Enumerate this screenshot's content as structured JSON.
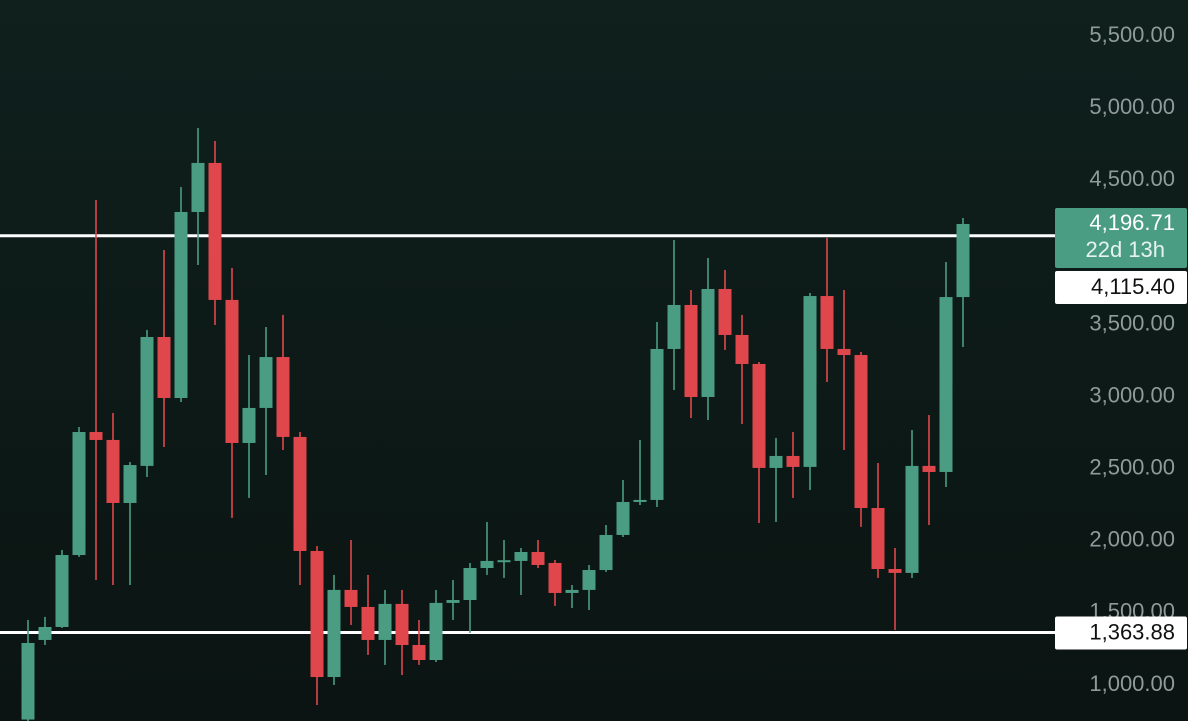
{
  "chart_data": {
    "type": "candlestick",
    "open": [
      760,
      1312,
      1402,
      1901,
      2754,
      2699,
      2262,
      2519,
      3413,
      2990,
      4280,
      4620,
      3670,
      2678,
      2921,
      3274,
      2720,
      1929,
      1055,
      1659,
      1541,
      1312,
      1562,
      1277,
      1173,
      1569,
      1589,
      1811,
      1860,
      1860,
      1922,
      1846,
      1638,
      1659,
      1797,
      2040,
      2269,
      2283,
      3330,
      3635,
      2997,
      3746,
      3427,
      3226,
      2505,
      2588,
      2512,
      3697,
      3330,
      3288,
      2227,
      1804,
      1777,
      2519,
      2477,
      3690
    ],
    "high": [
      1451,
      1472,
      1936,
      2789,
      4363,
      2886,
      2546,
      3462,
      4016,
      4453,
      4862,
      4772,
      3892,
      3288,
      3482,
      3566,
      2754,
      1964,
      1763,
      2005,
      1763,
      1659,
      1659,
      1451,
      1659,
      1728,
      1846,
      2130,
      2005,
      1950,
      2005,
      1867,
      1693,
      1832,
      2109,
      2421,
      2699,
      3517,
      4086,
      3739,
      3961,
      3878,
      3566,
      3240,
      2713,
      2754,
      3718,
      4100,
      3739,
      3309,
      2539,
      1950,
      2768,
      2872,
      3933,
      4238
    ],
    "low": [
      750,
      1277,
      1395,
      1888,
      1728,
      1693,
      1693,
      2442,
      2650,
      2962,
      3912,
      3496,
      2158,
      2297,
      2456,
      2629,
      1693,
      861,
      1000,
      1416,
      1208,
      1139,
      1069,
      1139,
      1159,
      1451,
      1361,
      1763,
      1742,
      1624,
      1811,
      1548,
      1534,
      1520,
      1784,
      2026,
      2248,
      2234,
      3045,
      2851,
      2837,
      3323,
      2810,
      2123,
      2130,
      2297,
      2352,
      3101,
      2629,
      2096,
      1742,
      1381,
      1742,
      2109,
      2373,
      3344
    ],
    "close": [
      1291,
      1402,
      1901,
      2754,
      2699,
      2262,
      2525,
      3413,
      2990,
      4280,
      4620,
      3670,
      2678,
      2921,
      3274,
      2720,
      1929,
      1055,
      1659,
      1541,
      1312,
      1562,
      1277,
      1173,
      1569,
      1589,
      1811,
      1860,
      1865,
      1922,
      1832,
      1638,
      1659,
      1797,
      2040,
      2269,
      2283,
      3330,
      3635,
      2997,
      3746,
      3427,
      3226,
      2505,
      2588,
      2512,
      3697,
      3330,
      3288,
      2227,
      1804,
      1777,
      2519,
      2477,
      3690,
      4196.71
    ],
    "up_color": "#4a9d83",
    "down_color": "#e0474c",
    "ylim": [
      750,
      5750
    ],
    "yticks": [
      {
        "value": 1000,
        "label": "1,000.00"
      },
      {
        "value": 1500,
        "label": "1,500.00"
      },
      {
        "value": 2000,
        "label": "2,000.00"
      },
      {
        "value": 2500,
        "label": "2,500.00"
      },
      {
        "value": 3000,
        "label": "3,000.00"
      },
      {
        "value": 3500,
        "label": "3,500.00"
      },
      {
        "value": 4500,
        "label": "4,500.00"
      },
      {
        "value": 5000,
        "label": "5,000.00"
      },
      {
        "value": 5500,
        "label": "5,500.00"
      }
    ],
    "price_lines": [
      {
        "value": 4115.4,
        "label": "4,115.40"
      },
      {
        "value": 1363.88,
        "label": "1,363.88"
      }
    ],
    "current_price": {
      "value": 4196.71,
      "label": "4,196.71",
      "countdown": "22d 13h"
    }
  }
}
